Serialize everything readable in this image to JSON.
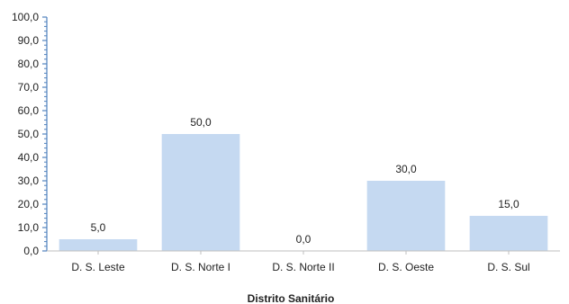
{
  "chart_data": {
    "type": "bar",
    "categories": [
      "D. S. Leste",
      "D. S. Norte I",
      "D. S. Norte II",
      "D. S. Oeste",
      "D. S. Sul"
    ],
    "values": [
      5.0,
      50.0,
      0.0,
      30.0,
      15.0
    ],
    "value_labels": [
      "5,0",
      "50,0",
      "0,0",
      "30,0",
      "15,0"
    ],
    "xlabel": "Distrito Sanitário",
    "ylabel": "",
    "ylim": [
      0,
      100
    ],
    "ytick_values": [
      0,
      10,
      20,
      30,
      40,
      50,
      60,
      70,
      80,
      90,
      100
    ],
    "ytick_labels": [
      "0,0",
      "10,0",
      "20,0",
      "30,0",
      "40,0",
      "50,0",
      "60,0",
      "70,0",
      "80,0",
      "90,0",
      "100,0"
    ],
    "grid": false,
    "colors": {
      "bar": "#c5d9f1",
      "y_axis": "#4f81bd",
      "x_axis": "#bfbfbf"
    }
  }
}
